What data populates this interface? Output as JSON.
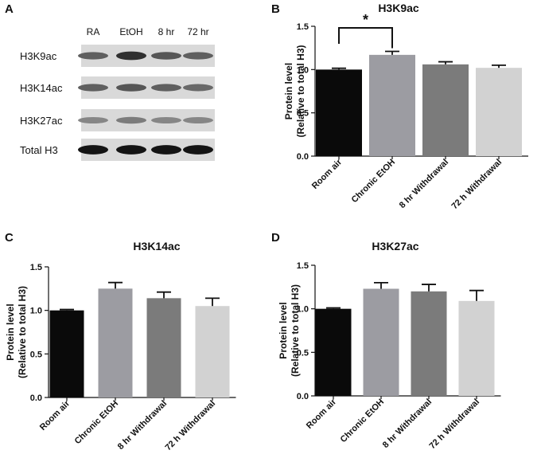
{
  "panels": {
    "a": {
      "letter": "A"
    },
    "b": {
      "letter": "B"
    },
    "c": {
      "letter": "C"
    },
    "d": {
      "letter": "D"
    }
  },
  "western_blot": {
    "lanes": [
      "RA",
      "EtOH",
      "8 hr",
      "72 hr"
    ],
    "rows": [
      {
        "label": "H3K9ac",
        "intensity": [
          0.55,
          0.8,
          0.6,
          0.55
        ]
      },
      {
        "label": "H3K14ac",
        "intensity": [
          0.55,
          0.6,
          0.55,
          0.5
        ]
      },
      {
        "label": "H3K27ac",
        "intensity": [
          0.35,
          0.4,
          0.35,
          0.35
        ]
      },
      {
        "label": "Total H3",
        "intensity": [
          0.95,
          0.95,
          0.95,
          0.95
        ]
      }
    ]
  },
  "colors": {
    "bars": [
      "#0a0a0a",
      "#9c9ca2",
      "#7b7b7b",
      "#d2d2d2"
    ],
    "axis": "#111111"
  },
  "chart_data": [
    {
      "type": "bar",
      "title": "H3K9ac",
      "ylabel": [
        "Protein level",
        "(Relative to total  H3)"
      ],
      "categories": [
        "Room air",
        "Chronic EtOH",
        "8 hr Withdrawal",
        "72 h Withdrawal"
      ],
      "values": [
        1.0,
        1.17,
        1.06,
        1.02
      ],
      "errors": [
        0.015,
        0.04,
        0.03,
        0.03
      ],
      "ylim": [
        0,
        1.5
      ],
      "yticks": [
        "0.0",
        "0.5",
        "1.0",
        "1.5"
      ],
      "significance": {
        "from": 0,
        "to": 1,
        "label": "*"
      }
    },
    {
      "type": "bar",
      "title": "H3K14ac",
      "ylabel": [
        "Protein level",
        "(Relative to total  H3)"
      ],
      "categories": [
        "Room air",
        "Chronic EtOH",
        "8 hr Withdrawal",
        "72 h Withdrawal"
      ],
      "values": [
        1.0,
        1.25,
        1.14,
        1.05
      ],
      "errors": [
        0.01,
        0.07,
        0.07,
        0.09
      ],
      "ylim": [
        0,
        1.5
      ],
      "yticks": [
        "0.0",
        "0.5",
        "1.0",
        "1.5"
      ]
    },
    {
      "type": "bar",
      "title": "H3K27ac",
      "ylabel": [
        "Protein level",
        "(Relative to total  H3)"
      ],
      "categories": [
        "Room air",
        "Chronic EtOH",
        "8 hr Withdrawal",
        "72 h Withdrawal"
      ],
      "values": [
        1.0,
        1.23,
        1.2,
        1.09
      ],
      "errors": [
        0.01,
        0.07,
        0.08,
        0.12
      ],
      "ylim": [
        0,
        1.5
      ],
      "yticks": [
        "0.0",
        "0.5",
        "1.0",
        "1.5"
      ]
    }
  ]
}
